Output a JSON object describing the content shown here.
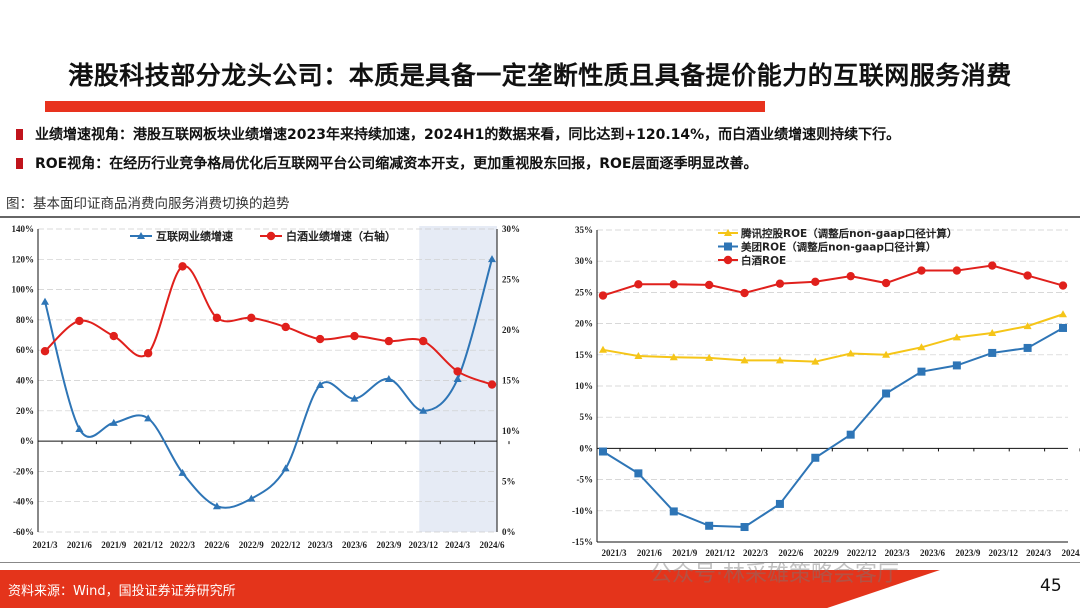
{
  "title": "港股科技部分龙头公司：本质是具备一定垄断性质且具备提价能力的互联网服务消费",
  "bullets": [
    "业绩增速视角：港股互联网板块业绩增速2023年来持续加速，2024H1的数据来看，同比达到+120.14%，而白酒业绩增速则持续下行。",
    "ROE视角：在经历行业竞争格局优化后互联网平台公司缩减资本开支，更加重视股东回报，ROE层面逐季明显改善。"
  ],
  "figure_caption": "图：基本面印证商品消费向服务消费切换的趋势",
  "footer": {
    "source": "资料来源：Wind，国投证券证券研究所",
    "page_number": "45",
    "watermark": "公众号·林采雄策略会客厅"
  },
  "colors": {
    "accent": "#e4341b",
    "blue": "#2e75b6",
    "red": "#e0201c",
    "yellow": "#f5c518",
    "shade": "#e6ebf5"
  },
  "chart_data": [
    {
      "type": "line",
      "smooth": true,
      "categories": [
        "2021/3",
        "2021/6",
        "2021/9",
        "2021/12",
        "2022/3",
        "2022/6",
        "2022/9",
        "2022/12",
        "2023/3",
        "2023/6",
        "2023/9",
        "2023/12",
        "2024/3",
        "2024/6"
      ],
      "y_left": {
        "range": [
          -60,
          140
        ],
        "ticks": [
          "-60%",
          "-40%",
          "-20%",
          "0%",
          "20%",
          "40%",
          "60%",
          "80%",
          "100%",
          "120%",
          "140%"
        ]
      },
      "y_right": {
        "range": [
          0,
          30
        ],
        "ticks": [
          "0%",
          "5%",
          "10%",
          "15%",
          "20%",
          "25%",
          "30%"
        ]
      },
      "highlight_range": [
        "2023/12",
        "2024/6"
      ],
      "grid": true,
      "legend": "top",
      "series": [
        {
          "name": "互联网业绩增速",
          "axis": "left",
          "marker": "triangle",
          "color": "#2e75b6",
          "values": [
            92,
            8,
            12,
            15,
            -21,
            -43,
            -38,
            -18,
            37,
            28,
            41,
            20,
            41,
            120.14
          ]
        },
        {
          "name": "白酒业绩增速（右轴）",
          "axis": "right",
          "marker": "circle",
          "color": "#e0201c",
          "values": [
            17.9,
            20.9,
            19.4,
            17.7,
            26.3,
            21.2,
            21.2,
            20.3,
            19.1,
            19.4,
            18.9,
            18.9,
            15.9,
            14.6
          ]
        }
      ]
    },
    {
      "type": "line",
      "categories": [
        "2021/3",
        "2021/6",
        "2021/9",
        "2021/12",
        "2022/3",
        "2022/6",
        "2022/9",
        "2022/12",
        "2023/3",
        "2023/6",
        "2023/9",
        "2023/12",
        "2024/3",
        "2024/6"
      ],
      "y": {
        "range": [
          -15,
          35
        ],
        "ticks": [
          "-15%",
          "-10%",
          "-5%",
          "0%",
          "5%",
          "10%",
          "15%",
          "20%",
          "25%",
          "30%",
          "35%"
        ]
      },
      "grid": true,
      "legend": "top",
      "series": [
        {
          "name": "腾讯控股ROE（调整后non-gaap口径计算）",
          "marker": "triangle",
          "color": "#f5c518",
          "values": [
            15.8,
            14.8,
            14.6,
            14.5,
            14.1,
            14.1,
            13.9,
            15.2,
            15.0,
            16.2,
            17.8,
            18.5,
            19.6,
            21.5
          ]
        },
        {
          "name": "美团ROE（调整后non-gaap口径计算）",
          "marker": "square",
          "color": "#2e75b6",
          "values": [
            -0.5,
            -4.0,
            -10.1,
            -12.4,
            -12.6,
            -8.9,
            -1.5,
            2.2,
            8.8,
            12.3,
            13.3,
            15.3,
            16.1,
            19.3
          ]
        },
        {
          "name": "白酒ROE",
          "marker": "circle",
          "color": "#e0201c",
          "values": [
            24.5,
            26.3,
            26.3,
            26.2,
            24.9,
            26.4,
            26.7,
            27.6,
            26.5,
            28.5,
            28.5,
            29.3,
            27.7,
            26.1
          ]
        }
      ]
    }
  ]
}
